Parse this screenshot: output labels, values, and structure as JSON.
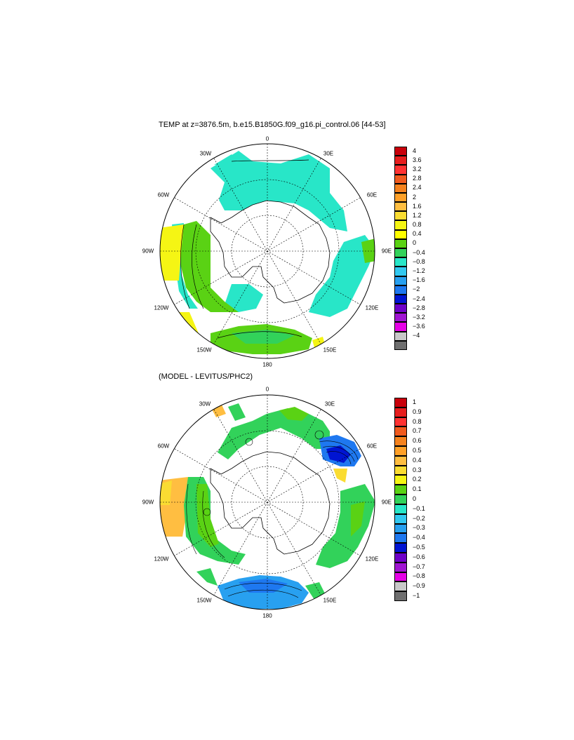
{
  "panels": [
    {
      "id": "top",
      "title": "TEMP at z=3876.5m, b.e15.B1850G.f09_g16.pi_control.06 [44-53]",
      "colorbar": {
        "labels": [
          "4",
          "3.6",
          "3.2",
          "2.8",
          "2.4",
          "2",
          "1.6",
          "1.2",
          "0.8",
          "0.4",
          "0",
          "−0.4",
          "−0.8",
          "−1.2",
          "−1.6",
          "−2",
          "−2.4",
          "−2.8",
          "−3.2",
          "−3.6",
          "−4"
        ],
        "colors": [
          "#c8000b",
          "#e61e1e",
          "#ff3232",
          "#f05a1e",
          "#f5821e",
          "#ffa028",
          "#ffbe41",
          "#fadc32",
          "#f5f514",
          "#ffff00",
          "#5ad214",
          "#32d25a",
          "#28e6c8",
          "#32c8f0",
          "#28a0f0",
          "#1e78f0",
          "#0014d2",
          "#6e00c8",
          "#a014d2",
          "#e600e6",
          "#c8c8c8",
          "#6e6e6e"
        ]
      },
      "lon_labels": [
        "0",
        "30E",
        "60E",
        "90E",
        "120E",
        "150E",
        "180",
        "150W",
        "120W",
        "90W",
        "60W",
        "30W"
      ]
    },
    {
      "id": "bottom",
      "title": "(MODEL - LEVITUS/PHC2)",
      "colorbar": {
        "labels": [
          "1",
          "0.9",
          "0.8",
          "0.7",
          "0.6",
          "0.5",
          "0.4",
          "0.3",
          "0.2",
          "0.1",
          "0",
          "−0.1",
          "−0.2",
          "−0.3",
          "−0.4",
          "−0.5",
          "−0.6",
          "−0.7",
          "−0.8",
          "−0.9",
          "−1"
        ],
        "colors": [
          "#c8000b",
          "#e61e1e",
          "#ff3232",
          "#f05a1e",
          "#f5821e",
          "#ffa028",
          "#ffbe41",
          "#fadc32",
          "#f5f514",
          "#5ad214",
          "#32d25a",
          "#28e6c8",
          "#32c8f0",
          "#28a0f0",
          "#1e78f0",
          "#0014d2",
          "#6e00c8",
          "#a014d2",
          "#e600e6",
          "#c8c8c8",
          "#6e6e6e"
        ]
      },
      "lon_labels": [
        "0",
        "30E",
        "60E",
        "90E",
        "120E",
        "150E",
        "180",
        "150W",
        "120W",
        "90W",
        "60W",
        "30W"
      ]
    }
  ]
}
